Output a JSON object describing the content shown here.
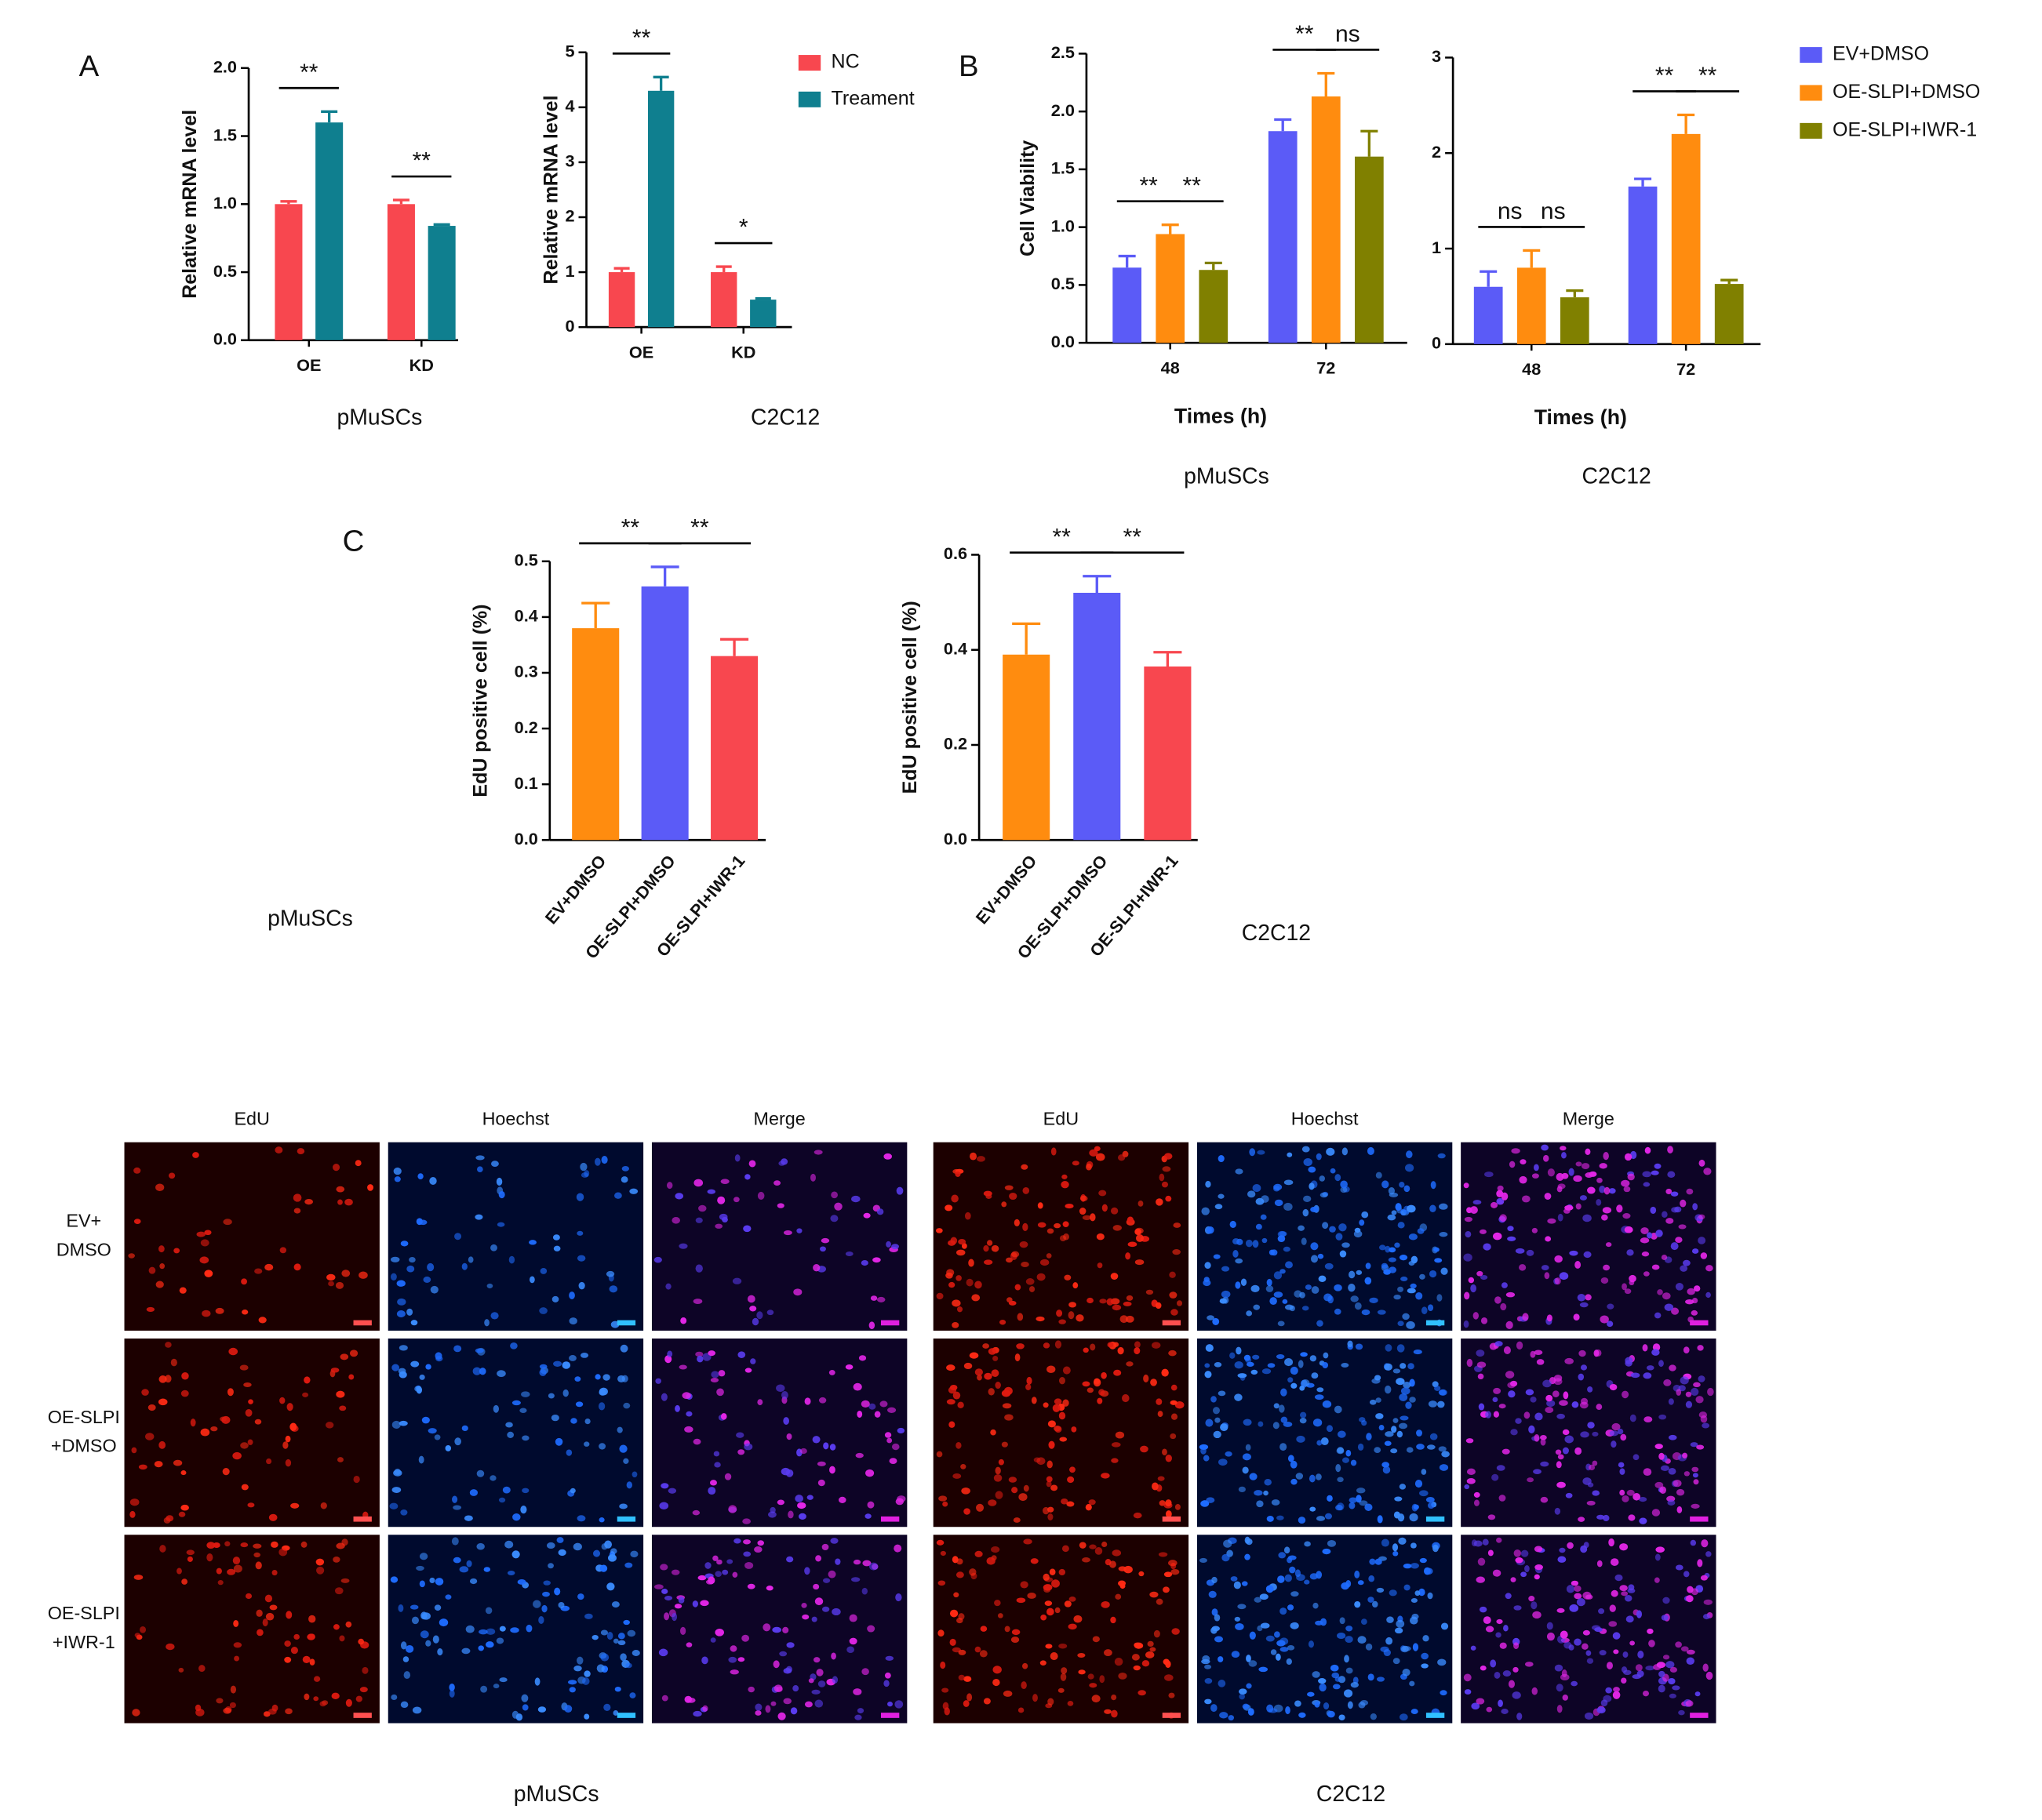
{
  "chart_data": [
    {
      "type": "bar",
      "ylabel": "Relative mRNA level",
      "caption": "pMuSCs",
      "categories": [
        "OE",
        "KD"
      ],
      "series": [
        {
          "name": "NC",
          "color": "#f8474f",
          "values": [
            1.0,
            1.0
          ],
          "errors": [
            0.02,
            0.03
          ]
        },
        {
          "name": "Treament",
          "color": "#0f7f8f",
          "values": [
            1.6,
            0.84
          ],
          "errors": [
            0.08,
            0.01
          ]
        }
      ],
      "ylim": [
        0,
        2
      ],
      "yticks": [
        {
          "value": 0,
          "label": "0.0"
        },
        0.5,
        {
          "value": 1,
          "label": "1.0"
        },
        1.5,
        {
          "value": 2,
          "label": "2.0"
        }
      ],
      "annotations": [
        {
          "category": "OE",
          "series": [
            "NC",
            "Treament"
          ],
          "label": "**"
        },
        {
          "category": "KD",
          "series": [
            "NC",
            "Treament"
          ],
          "label": "**"
        }
      ]
    },
    {
      "type": "bar",
      "ylabel": "Relative mRNA level",
      "caption": "C2C12",
      "legend": true,
      "categories": [
        "OE",
        "KD"
      ],
      "series": [
        {
          "name": "NC",
          "color": "#f8474f",
          "values": [
            1.0,
            1.0
          ],
          "errors": [
            0.07,
            0.1
          ]
        },
        {
          "name": "Treament",
          "color": "#0f7f8f",
          "values": [
            4.3,
            0.5
          ],
          "errors": [
            0.25,
            0.02
          ]
        }
      ],
      "ylim": [
        0,
        5
      ],
      "yticks": [
        0,
        1,
        2,
        3,
        4,
        5
      ],
      "annotations": [
        {
          "category": "OE",
          "series": [
            "NC",
            "Treament"
          ],
          "label": "**"
        },
        {
          "category": "KD",
          "series": [
            "NC",
            "Treament"
          ],
          "label": "*"
        }
      ]
    },
    {
      "type": "bar",
      "ylabel": "Cell Viability",
      "xlabel": "Times (h)",
      "caption": "pMuSCs",
      "categories": [
        "48",
        "72"
      ],
      "series": [
        {
          "name": "EV+DMSO",
          "color": "#5b5bf7",
          "values": [
            0.65,
            1.83
          ],
          "errors": [
            0.1,
            0.1
          ]
        },
        {
          "name": "OE-SLPI+DMSO",
          "color": "#ff8c0f",
          "values": [
            0.94,
            2.13
          ],
          "errors": [
            0.08,
            0.2
          ]
        },
        {
          "name": "OE-SLPI+IWR-1",
          "color": "#808000",
          "values": [
            0.63,
            1.61
          ],
          "errors": [
            0.06,
            0.22
          ]
        }
      ],
      "ylim": [
        0,
        2.5
      ],
      "yticks": [
        {
          "value": 0,
          "label": "0.0"
        },
        0.5,
        {
          "value": 1,
          "label": "1.0"
        },
        1.5,
        {
          "value": 2,
          "label": "2.0"
        },
        2.5
      ],
      "annotations": [
        {
          "category": "48",
          "series": [
            "EV+DMSO",
            "OE-SLPI+DMSO"
          ],
          "label": "**"
        },
        {
          "category": "48",
          "series": [
            "OE-SLPI+DMSO",
            "OE-SLPI+IWR-1"
          ],
          "label": "**"
        },
        {
          "category": "72",
          "series": [
            "EV+DMSO",
            "OE-SLPI+DMSO"
          ],
          "label": "**"
        },
        {
          "category": "72",
          "series": [
            "OE-SLPI+DMSO",
            "OE-SLPI+IWR-1"
          ],
          "label": "ns"
        }
      ]
    },
    {
      "type": "bar",
      "xlabel": "Times (h)",
      "caption": "C2C12",
      "legend": true,
      "categories": [
        "48",
        "72"
      ],
      "series": [
        {
          "name": "EV+DMSO",
          "color": "#5b5bf7",
          "values": [
            0.6,
            1.65
          ],
          "errors": [
            0.16,
            0.08
          ]
        },
        {
          "name": "OE-SLPI+DMSO",
          "color": "#ff8c0f",
          "values": [
            0.8,
            2.2
          ],
          "errors": [
            0.18,
            0.2
          ]
        },
        {
          "name": "OE-SLPI+IWR-1",
          "color": "#808000",
          "values": [
            0.49,
            0.63
          ],
          "errors": [
            0.07,
            0.04
          ]
        }
      ],
      "ylim": [
        0,
        3
      ],
      "yticks": [
        0,
        1,
        2,
        3
      ],
      "annotations": [
        {
          "category": "48",
          "series": [
            "EV+DMSO",
            "OE-SLPI+DMSO"
          ],
          "label": "ns"
        },
        {
          "category": "48",
          "series": [
            "OE-SLPI+DMSO",
            "OE-SLPI+IWR-1"
          ],
          "label": "ns"
        },
        {
          "category": "72",
          "series": [
            "EV+DMSO",
            "OE-SLPI+DMSO"
          ],
          "label": "**"
        },
        {
          "category": "72",
          "series": [
            "OE-SLPI+DMSO",
            "OE-SLPI+IWR-1"
          ],
          "label": "**"
        }
      ]
    },
    {
      "type": "bar",
      "ylabel": "EdU positive cell (%)",
      "caption": "pMuSCs",
      "categories": [
        "EV+DMSO",
        "OE-SLPI+DMSO",
        "OE-SLPI+IWR-1"
      ],
      "values": [
        0.38,
        0.455,
        0.33
      ],
      "errors": [
        0.045,
        0.035,
        0.03
      ],
      "colors": [
        "#ff8c0f",
        "#5b5bf7",
        "#f8474f"
      ],
      "ylim": [
        0,
        0.5
      ],
      "yticks": [
        {
          "value": 0,
          "label": "0.0"
        },
        0.1,
        0.2,
        0.3,
        0.4,
        0.5
      ],
      "annotations": [
        {
          "categories": [
            "EV+DMSO",
            "OE-SLPI+DMSO"
          ],
          "label": "**"
        },
        {
          "categories": [
            "OE-SLPI+DMSO",
            "OE-SLPI+IWR-1"
          ],
          "label": "**"
        }
      ]
    },
    {
      "type": "bar",
      "ylabel": "EdU positive cell (%)",
      "caption": "C2C12",
      "categories": [
        "EV+DMSO",
        "OE-SLPI+DMSO",
        "OE-SLPI+IWR-1"
      ],
      "values": [
        0.39,
        0.52,
        0.365
      ],
      "errors": [
        0.065,
        0.035,
        0.03
      ],
      "colors": [
        "#ff8c0f",
        "#5b5bf7",
        "#f8474f"
      ],
      "ylim": [
        0,
        0.6
      ],
      "yticks": [
        {
          "value": 0,
          "label": "0.0"
        },
        0.2,
        0.4,
        0.6
      ],
      "annotations": [
        {
          "categories": [
            "EV+DMSO",
            "OE-SLPI+DMSO"
          ],
          "label": "**"
        },
        {
          "categories": [
            "OE-SLPI+DMSO",
            "OE-SLPI+IWR-1"
          ],
          "label": "**"
        }
      ]
    }
  ],
  "panels": [
    "A",
    "B",
    "C"
  ],
  "micrographs": {
    "groups": [
      {
        "name": "pMuSCs",
        "columns": [
          "EdU",
          "Hoechst",
          "Merge"
        ]
      },
      {
        "name": "C2C12",
        "columns": [
          "EdU",
          "Hoechst",
          "Merge"
        ]
      }
    ],
    "rows": [
      [
        "EV+",
        "DMSO"
      ],
      [
        "OE-SLPI",
        "+DMSO"
      ],
      [
        "OE-SLPI",
        "+IWR-1"
      ]
    ]
  }
}
